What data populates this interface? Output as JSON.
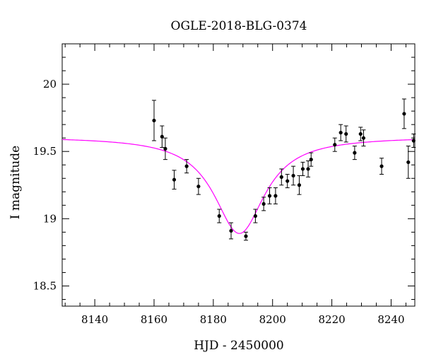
{
  "chart_data": {
    "type": "scatter",
    "title": "OGLE-2018-BLG-0374",
    "xlabel": "HJD - 2450000",
    "ylabel": "I magnitude",
    "xlim": [
      8129,
      8248
    ],
    "ylim": [
      20.3,
      18.35
    ],
    "y_inverted": true,
    "grid": false,
    "xticks": [
      8140,
      8160,
      8180,
      8200,
      8220,
      8240
    ],
    "yticks": [
      18.5,
      19,
      19.5,
      20
    ],
    "xtick_labels": [
      "8140",
      "8160",
      "8180",
      "8200",
      "8220",
      "8240"
    ],
    "ytick_labels": [
      "18.5",
      "19",
      "19.5",
      "20"
    ],
    "series": [
      {
        "type": "errorbar",
        "color": "#000000",
        "points": [
          {
            "x": 8160.0,
            "y": 19.73,
            "err": 0.15
          },
          {
            "x": 8162.7,
            "y": 19.61,
            "err": 0.08
          },
          {
            "x": 8163.8,
            "y": 19.52,
            "err": 0.08
          },
          {
            "x": 8166.8,
            "y": 19.29,
            "err": 0.07
          },
          {
            "x": 8171.0,
            "y": 19.39,
            "err": 0.05
          },
          {
            "x": 8175.0,
            "y": 19.24,
            "err": 0.06
          },
          {
            "x": 8182.0,
            "y": 19.02,
            "err": 0.05
          },
          {
            "x": 8186.0,
            "y": 18.91,
            "err": 0.06
          },
          {
            "x": 8191.0,
            "y": 18.87,
            "err": 0.03
          },
          {
            "x": 8194.2,
            "y": 19.02,
            "err": 0.05
          },
          {
            "x": 8197.0,
            "y": 19.11,
            "err": 0.05
          },
          {
            "x": 8199.0,
            "y": 19.17,
            "err": 0.06
          },
          {
            "x": 8201.0,
            "y": 19.17,
            "err": 0.06
          },
          {
            "x": 8203.0,
            "y": 19.31,
            "err": 0.06
          },
          {
            "x": 8205.0,
            "y": 19.28,
            "err": 0.05
          },
          {
            "x": 8207.0,
            "y": 19.32,
            "err": 0.07
          },
          {
            "x": 8209.0,
            "y": 19.25,
            "err": 0.07
          },
          {
            "x": 8210.2,
            "y": 19.37,
            "err": 0.05
          },
          {
            "x": 8212.0,
            "y": 19.37,
            "err": 0.06
          },
          {
            "x": 8213.0,
            "y": 19.44,
            "err": 0.05
          },
          {
            "x": 8221.0,
            "y": 19.55,
            "err": 0.05
          },
          {
            "x": 8223.0,
            "y": 19.64,
            "err": 0.06
          },
          {
            "x": 8224.8,
            "y": 19.63,
            "err": 0.06
          },
          {
            "x": 8227.7,
            "y": 19.49,
            "err": 0.05
          },
          {
            "x": 8229.7,
            "y": 19.63,
            "err": 0.05
          },
          {
            "x": 8230.7,
            "y": 19.6,
            "err": 0.06
          },
          {
            "x": 8236.8,
            "y": 19.39,
            "err": 0.06
          },
          {
            "x": 8244.4,
            "y": 19.78,
            "err": 0.11
          },
          {
            "x": 8245.8,
            "y": 19.42,
            "err": 0.12
          },
          {
            "x": 8247.6,
            "y": 19.58,
            "err": 0.05
          }
        ]
      },
      {
        "type": "line",
        "color": "#ff00ff",
        "model": {
          "t0": 8188.8,
          "i_peak": 18.89,
          "i_base": 19.61,
          "width": 10.5
        }
      }
    ]
  }
}
